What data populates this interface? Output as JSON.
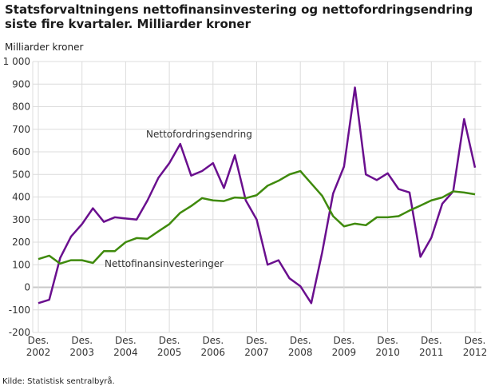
{
  "title": "Statsforvaltningens nettofinansinvestering og nettofordringsendring siste fire kvartaler. Milliarder kroner",
  "source": "Kilde: Statistisk sentralbyrå.",
  "chart_data": {
    "type": "line",
    "title": "Statsforvaltningens nettofinansinvestering og nettofordringsendring siste fire kvartaler. Milliarder kroner",
    "ylabel": "Milliarder kroner",
    "ylim": [
      -200,
      1000
    ],
    "yticks": [
      -200,
      -100,
      0,
      100,
      200,
      300,
      400,
      500,
      600,
      700,
      800,
      900,
      1000
    ],
    "ytick_labels": [
      "-200",
      "-100",
      "0",
      "100",
      "200",
      "300",
      "400",
      "500",
      "600",
      "700",
      "800",
      "900",
      "1 000"
    ],
    "xtick_labels": [
      [
        "Des.",
        "2002"
      ],
      [
        "Des.",
        "2003"
      ],
      [
        "Des.",
        "2004"
      ],
      [
        "Des.",
        "2005"
      ],
      [
        "Des.",
        "2006"
      ],
      [
        "Des.",
        "2007"
      ],
      [
        "Des.",
        "2008"
      ],
      [
        "Des.",
        "2009"
      ],
      [
        "Des.",
        "2010"
      ],
      [
        "Des.",
        "2011"
      ],
      [
        "Des.",
        "2012"
      ]
    ],
    "x_start": "2002Q4",
    "x_end": "2012Q4",
    "grid": true,
    "series": [
      {
        "name": "Nettofordringsendring",
        "color": "#6a0f8e",
        "values": [
          -70,
          -55,
          130,
          225,
          280,
          350,
          290,
          310,
          305,
          300,
          385,
          485,
          550,
          635,
          495,
          515,
          550,
          440,
          585,
          385,
          300,
          100,
          120,
          40,
          5,
          -70,
          155,
          415,
          535,
          885,
          500,
          475,
          505,
          435,
          420,
          135,
          220,
          370,
          425,
          745,
          530
        ]
      },
      {
        "name": "Nettofinansinvesteringer",
        "color": "#3f8a0c",
        "values": [
          125,
          140,
          105,
          120,
          120,
          108,
          160,
          160,
          200,
          218,
          215,
          248,
          280,
          330,
          360,
          395,
          385,
          382,
          398,
          395,
          408,
          450,
          472,
          500,
          515,
          460,
          405,
          315,
          270,
          282,
          275,
          310,
          310,
          315,
          340,
          362,
          385,
          398,
          425,
          420,
          412
        ]
      }
    ]
  }
}
